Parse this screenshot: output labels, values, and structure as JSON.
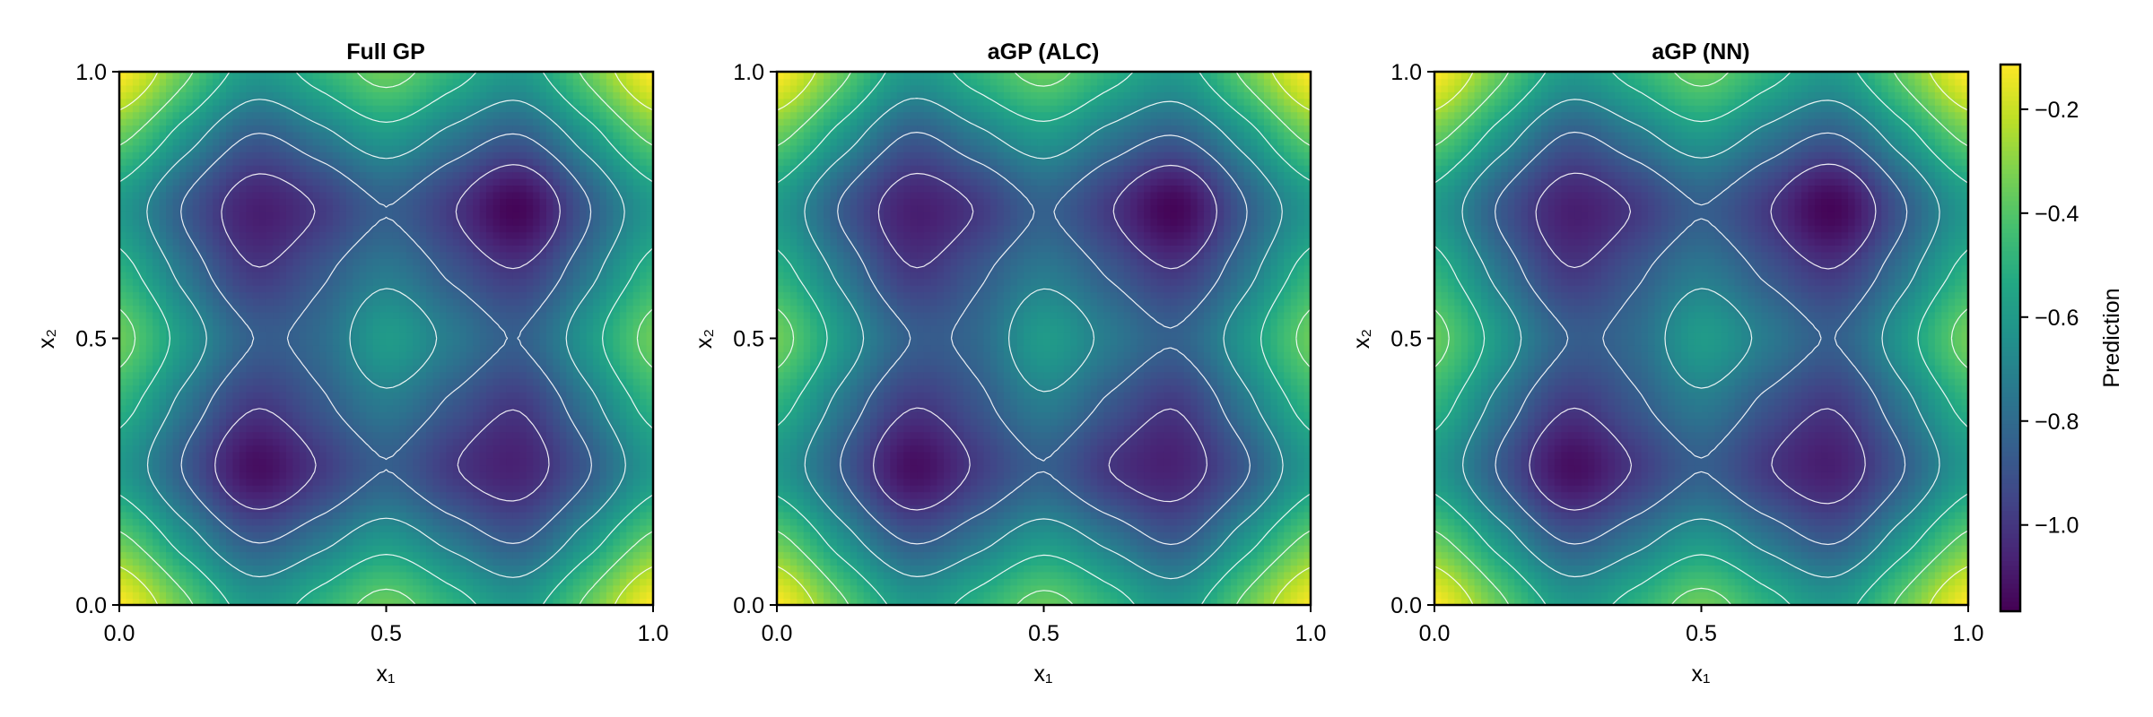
{
  "colorbar": {
    "label": "Prediction",
    "colormap": "viridis",
    "range": [
      -1.166,
      -0.114
    ],
    "ticks": [
      -0.2,
      -0.4,
      -0.6,
      -0.8,
      -1.0
    ],
    "tick_labels": [
      "−0.2",
      "−0.4",
      "−0.6",
      "−0.8",
      "−1.0"
    ]
  },
  "chart_data": [
    {
      "type": "heatmap",
      "title": "Full GP",
      "xlabel": "x₁",
      "ylabel": "x₂",
      "xlim": [
        0,
        1
      ],
      "ylim": [
        0,
        1
      ],
      "xticks": [
        "0.0",
        "0.5",
        "1.0"
      ],
      "yticks": [
        "0.0",
        "0.5",
        "1.0"
      ],
      "grid": false,
      "contour_levels": [
        -1.0,
        -0.85,
        -0.7,
        -0.55,
        -0.4,
        -0.25
      ],
      "contour_color": "#ffffff",
      "grid_axis": [
        0,
        0.125,
        0.25,
        0.375,
        0.5,
        0.625,
        0.75,
        0.875,
        1
      ],
      "z_rows_by_x2": [
        [
          -0.11,
          -0.372,
          -0.604,
          -0.495,
          -0.355,
          -0.495,
          -0.604,
          -0.372,
          -0.11
        ],
        [
          -0.372,
          -0.634,
          -0.866,
          -0.757,
          -0.617,
          -0.757,
          -0.866,
          -0.634,
          -0.372
        ],
        [
          -0.604,
          -0.866,
          -1.12,
          -0.989,
          -0.849,
          -0.989,
          -1.06,
          -0.866,
          -0.604
        ],
        [
          -0.495,
          -0.757,
          -0.989,
          -0.88,
          -0.74,
          -0.88,
          -0.989,
          -0.757,
          -0.495
        ],
        [
          -0.355,
          -0.617,
          -0.849,
          -0.8,
          -0.6,
          -0.74,
          -0.849,
          -0.617,
          -0.355
        ],
        [
          -0.495,
          -0.757,
          -0.989,
          -0.88,
          -0.74,
          -0.88,
          -0.989,
          -0.757,
          -0.495
        ],
        [
          -0.604,
          -0.866,
          -1.07,
          -0.989,
          -0.849,
          -0.989,
          -1.15,
          -0.866,
          -0.604
        ],
        [
          -0.372,
          -0.634,
          -0.866,
          -0.757,
          -0.617,
          -0.757,
          -0.866,
          -0.634,
          -0.372
        ],
        [
          -0.11,
          -0.372,
          -0.604,
          -0.495,
          -0.355,
          -0.495,
          -0.604,
          -0.372,
          -0.11
        ]
      ]
    },
    {
      "type": "heatmap",
      "title": "aGP (ALC)",
      "xlabel": "x₁",
      "ylabel": "x₂",
      "xlim": [
        0,
        1
      ],
      "ylim": [
        0,
        1
      ],
      "xticks": [
        "0.0",
        "0.5",
        "1.0"
      ],
      "yticks": [
        "0.0",
        "0.5",
        "1.0"
      ],
      "grid": false,
      "contour_levels": [
        -1.0,
        -0.85,
        -0.7,
        -0.55,
        -0.4,
        -0.25
      ],
      "contour_color": "#ffffff",
      "grid_axis": [
        0,
        0.125,
        0.25,
        0.375,
        0.5,
        0.625,
        0.75,
        0.875,
        1
      ],
      "z_rows_by_x2": [
        [
          -0.11,
          -0.38,
          -0.6,
          -0.5,
          -0.36,
          -0.49,
          -0.61,
          -0.37,
          -0.12
        ],
        [
          -0.37,
          -0.64,
          -0.87,
          -0.76,
          -0.62,
          -0.75,
          -0.87,
          -0.63,
          -0.37
        ],
        [
          -0.61,
          -0.86,
          -1.12,
          -0.98,
          -0.85,
          -1.0,
          -1.06,
          -0.87,
          -0.6
        ],
        [
          -0.5,
          -0.76,
          -0.99,
          -0.89,
          -0.73,
          -0.88,
          -0.99,
          -0.75,
          -0.49
        ],
        [
          -0.35,
          -0.62,
          -0.85,
          -0.81,
          -0.6,
          -0.74,
          -0.84,
          -0.62,
          -0.36
        ],
        [
          -0.5,
          -0.75,
          -0.99,
          -0.88,
          -0.74,
          -0.87,
          -0.99,
          -0.76,
          -0.49
        ],
        [
          -0.6,
          -0.87,
          -1.07,
          -0.99,
          -0.84,
          -0.99,
          -1.15,
          -0.86,
          -0.61
        ],
        [
          -0.37,
          -0.63,
          -0.87,
          -0.75,
          -0.62,
          -0.76,
          -0.86,
          -0.64,
          -0.37
        ],
        [
          -0.11,
          -0.37,
          -0.61,
          -0.49,
          -0.36,
          -0.5,
          -0.6,
          -0.37,
          -0.11
        ]
      ]
    },
    {
      "type": "heatmap",
      "title": "aGP (NN)",
      "xlabel": "x₁",
      "ylabel": "x₂",
      "xlim": [
        0,
        1
      ],
      "ylim": [
        0,
        1
      ],
      "xticks": [
        "0.0",
        "0.5",
        "1.0"
      ],
      "yticks": [
        "0.0",
        "0.5",
        "1.0"
      ],
      "grid": false,
      "contour_levels": [
        -1.0,
        -0.85,
        -0.7,
        -0.55,
        -0.4,
        -0.25
      ],
      "contour_color": "#ffffff",
      "grid_axis": [
        0,
        0.125,
        0.25,
        0.375,
        0.5,
        0.625,
        0.75,
        0.875,
        1
      ],
      "z_rows_by_x2": [
        [
          -0.11,
          -0.37,
          -0.6,
          -0.5,
          -0.35,
          -0.5,
          -0.6,
          -0.37,
          -0.11
        ],
        [
          -0.37,
          -0.63,
          -0.87,
          -0.76,
          -0.62,
          -0.76,
          -0.87,
          -0.63,
          -0.37
        ],
        [
          -0.6,
          -0.87,
          -1.12,
          -0.99,
          -0.85,
          -0.99,
          -1.07,
          -0.86,
          -0.6
        ],
        [
          -0.49,
          -0.76,
          -0.99,
          -0.88,
          -0.74,
          -0.89,
          -0.99,
          -0.76,
          -0.5
        ],
        [
          -0.36,
          -0.62,
          -0.85,
          -0.8,
          -0.6,
          -0.74,
          -0.85,
          -0.62,
          -0.35
        ],
        [
          -0.49,
          -0.76,
          -0.99,
          -0.88,
          -0.74,
          -0.88,
          -0.99,
          -0.76,
          -0.5
        ],
        [
          -0.6,
          -0.87,
          -1.07,
          -0.99,
          -0.85,
          -0.99,
          -1.15,
          -0.87,
          -0.6
        ],
        [
          -0.37,
          -0.63,
          -0.87,
          -0.76,
          -0.62,
          -0.76,
          -0.87,
          -0.63,
          -0.37
        ],
        [
          -0.11,
          -0.37,
          -0.6,
          -0.5,
          -0.36,
          -0.5,
          -0.6,
          -0.37,
          -0.11
        ]
      ]
    }
  ]
}
